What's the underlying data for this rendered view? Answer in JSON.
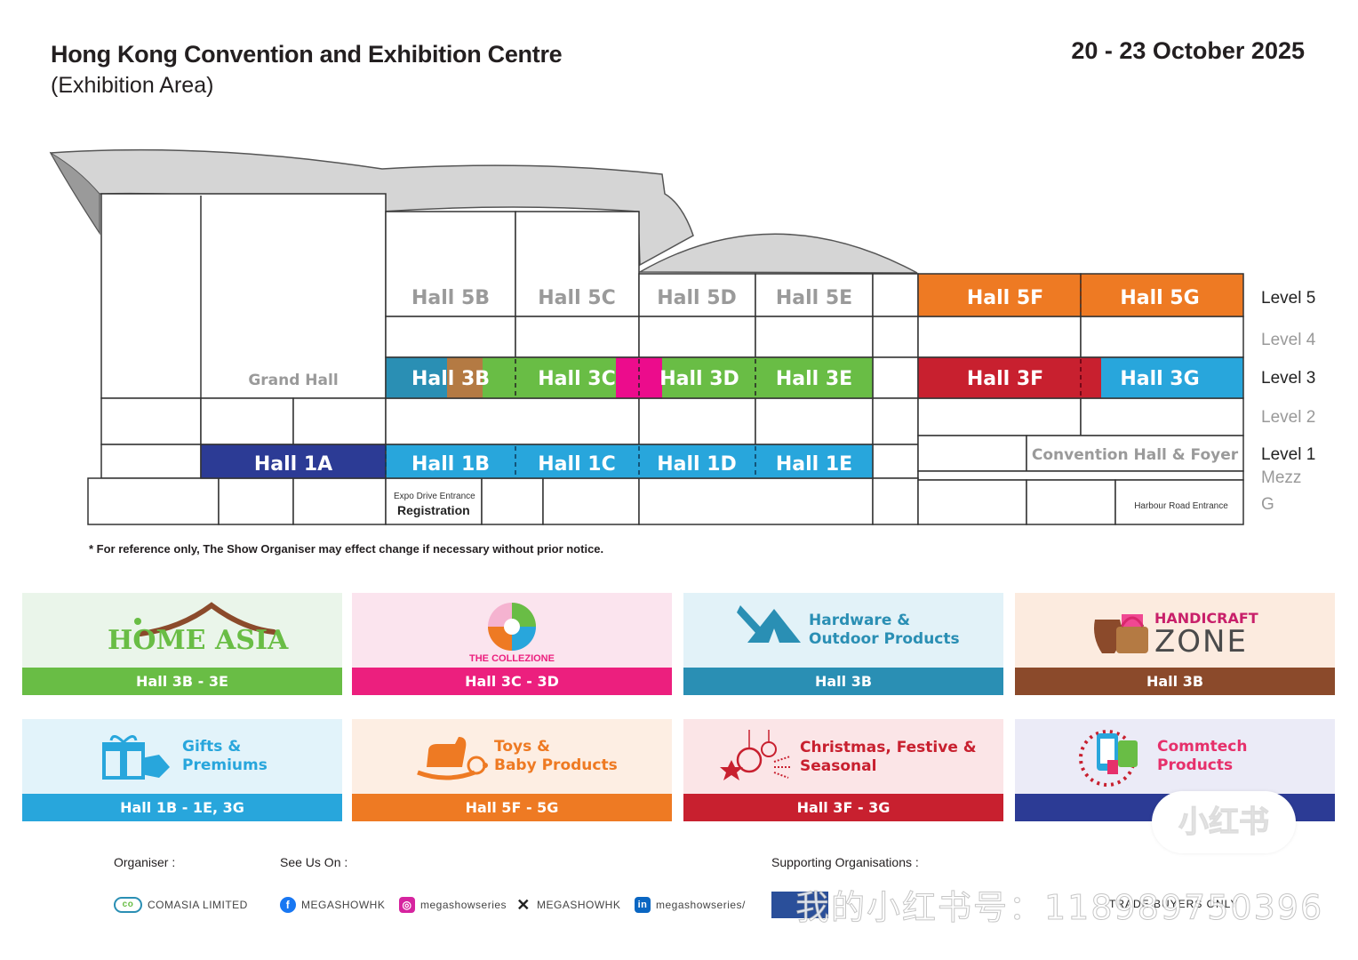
{
  "header": {
    "venue": "Hong Kong Convention and Exhibition Centre",
    "area": "(Exhibition Area)",
    "date": "20 - 23 October 2025"
  },
  "floorplan": {
    "halls": {
      "h5b": "Hall 5B",
      "h5c": "Hall 5C",
      "h5d": "Hall 5D",
      "h5e": "Hall 5E",
      "h5f": "Hall 5F",
      "h5g": "Hall 5G",
      "grand": "Grand Hall",
      "h3b": "Hall 3B",
      "h3c": "Hall 3C",
      "h3d": "Hall 3D",
      "h3e": "Hall 3E",
      "h3f": "Hall 3F",
      "h3g": "Hall 3G",
      "h1a": "Hall 1A",
      "h1b": "Hall 1B",
      "h1c": "Hall 1C",
      "h1d": "Hall 1D",
      "h1e": "Hall 1E",
      "convention": "Convention Hall & Foyer"
    },
    "entrances": {
      "expo": "Expo Drive Entrance",
      "registration": "Registration",
      "harbour": "Harbour Road Entrance"
    },
    "levels": {
      "l5": "Level 5",
      "l4": "Level 4",
      "l3": "Level 3",
      "l2": "Level 2",
      "l1": "Level 1",
      "mezz": "Mezz",
      "g": "G"
    },
    "colors": {
      "orange": "#ee7a23",
      "red": "#c8202f",
      "cyan": "#28a6dc",
      "blue_dark": "#2c3b95",
      "green": "#69bd45",
      "brown": "#b47a43",
      "magenta": "#ec0c8c",
      "teal": "#2a8fb4"
    }
  },
  "disclaimer": "* For reference only, The Show Organiser may effect change if necessary without prior notice.",
  "zones": [
    {
      "logo_text": "HOME ASIA",
      "location": "Hall 3B - 3E",
      "bar_color": "#69bd45",
      "bg": "#eaf5ea",
      "icon": "roof-icon"
    },
    {
      "logo_text": "THE COLLEZIONE",
      "location": "Hall 3C - 3D",
      "bar_color": "#ec1f7e",
      "bg": "#fbe4ee",
      "icon": "collezione-icon"
    },
    {
      "title_line1": "Hardware &",
      "title_line2": "Outdoor Products",
      "location": "Hall 3B",
      "bar_color": "#2a8fb4",
      "bg": "#e2f2f8",
      "text_color": "#2a8fb4",
      "icon": "tools-tent-icon"
    },
    {
      "title_line1": "HANDICRAFT",
      "title_line2": "ZONE",
      "location": "Hall 3B",
      "bar_color": "#8b4a2b",
      "bg": "#fcebdf",
      "icon": "pottery-icon"
    },
    {
      "title_line1": "Gifts &",
      "title_line2": "Premiums",
      "location": "Hall 1B - 1E, 3G",
      "bar_color": "#28a6dc",
      "bg": "#e2f3fa",
      "text_color": "#28a6dc",
      "icon": "gift-icon"
    },
    {
      "title_line1": "Toys &",
      "title_line2": "Baby Products",
      "location": "Hall 5F - 5G",
      "bar_color": "#ee7a23",
      "bg": "#fdeee3",
      "text_color": "#ee7a23",
      "icon": "rocking-horse-icon"
    },
    {
      "title_line1": "Christmas, Festive &",
      "title_line2": "Seasonal",
      "location": "Hall 3F - 3G",
      "bar_color": "#c8202f",
      "bg": "#fbe5e7",
      "text_color": "#c8202f",
      "icon": "ornament-icon"
    },
    {
      "title_line1": "Commtech",
      "title_line2": "Products",
      "location": "",
      "bar_color": "#2c3b95",
      "bg": "#ebebf7",
      "text_color": "#e6306b",
      "icon": "phone-icon"
    }
  ],
  "footer": {
    "organiser_label": "Organiser :",
    "organiser": "COMASIA LIMITED",
    "see_us_label": "See Us On :",
    "facebook": "MEGASHOWHK",
    "instagram": "megashowseries",
    "x": "MEGASHOWHK",
    "linkedin": "megashowseries/",
    "supporting_label": "Supporting Organisations :",
    "supporting_partial": "TRADE BUYERS ONLY"
  },
  "watermark": {
    "badge": "小红书",
    "text": "我的小红书号：118989750396"
  }
}
